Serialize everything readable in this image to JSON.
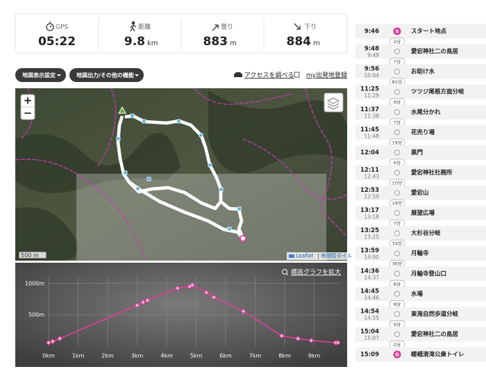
{
  "stats": [
    {
      "label": "GPS",
      "value": "05:22"
    },
    {
      "label": "距離",
      "value": "9.8",
      "unit": "km"
    },
    {
      "label": "登り",
      "value": "883",
      "unit": "m"
    },
    {
      "label": "下り",
      "value": "884",
      "unit": "m"
    }
  ],
  "buttons": [
    "地図表示設定",
    "地図出力/その他の機能"
  ],
  "links": [
    "アクセスを調べる",
    "my出発地登録"
  ],
  "map": {
    "zoom_in": "+",
    "zoom_out": "−",
    "scale": "500 m",
    "attribution": [
      "Leaflet",
      "地理院タイル"
    ]
  },
  "expand_link": "標高グラフを拡大",
  "chart_data": {
    "type": "line",
    "x": [
      0,
      0.14,
      0.38,
      3.0,
      3.2,
      3.35,
      4.37,
      4.78,
      4.87,
      5.35,
      5.6,
      6.6,
      7.9,
      8.45,
      8.9,
      9.72,
      9.8
    ],
    "series": [
      {
        "name": "標高",
        "color": "#e0409a",
        "values": [
          55,
          75,
          120,
          650,
          700,
          730,
          925,
          950,
          975,
          855,
          780,
          555,
          165,
          120,
          90,
          55,
          55
        ]
      }
    ],
    "xlim": [
      0,
      9.9
    ],
    "xticks": [
      {
        "value": 0,
        "label": "0km"
      },
      {
        "value": 1,
        "label": "1km"
      },
      {
        "value": 2,
        "label": "2km"
      },
      {
        "value": 3,
        "label": "3km"
      },
      {
        "value": 4,
        "label": "4km"
      },
      {
        "value": 5,
        "label": "5km"
      },
      {
        "value": 6,
        "label": "6km"
      },
      {
        "value": 7,
        "label": "7km"
      },
      {
        "value": 8,
        "label": "8km"
      },
      {
        "value": 9,
        "label": "9km"
      }
    ],
    "ylim": [
      0,
      1120
    ],
    "yticks": [
      {
        "value": 500,
        "label": "500m"
      },
      {
        "value": 1000,
        "label": "1000m"
      }
    ],
    "grid": true
  },
  "timeline": [
    {
      "arrive": "9:46",
      "badge": "S",
      "name": "スタート地点",
      "duration": "2分"
    },
    {
      "arrive": "9:48",
      "depart": "9:49",
      "name": "愛宕神社二の鳥居",
      "duration": "7分"
    },
    {
      "arrive": "9:56",
      "depart": "10:04",
      "name": "お助け水",
      "duration": "82分"
    },
    {
      "arrive": "11:25",
      "depart": "11:29",
      "name": "ツツジ尾根方面分岐",
      "duration": "9分"
    },
    {
      "arrive": "11:37",
      "depart": "11:38",
      "name": "水尾分かれ",
      "duration": "7分"
    },
    {
      "arrive": "11:45",
      "depart": "11:48",
      "name": "花売り場",
      "duration": "19分"
    },
    {
      "arrive": "12:04",
      "name": "黒門",
      "duration": "6分"
    },
    {
      "arrive": "12:11",
      "depart": "12:43",
      "name": "愛宕神社社務所",
      "duration": "10分"
    },
    {
      "arrive": "12:53",
      "depart": "12:59",
      "name": "愛宕山",
      "duration": "18分"
    },
    {
      "arrive": "13:17",
      "depart": "13:18",
      "name": "展望広場",
      "duration": "7分"
    },
    {
      "arrive": "13:25",
      "depart": "13:25",
      "name": "大杉谷分岐",
      "duration": "34分"
    },
    {
      "arrive": "13:59",
      "depart": "14:00",
      "name": "月輪寺",
      "duration": "36分"
    },
    {
      "arrive": "14:36",
      "depart": "14:37",
      "name": "月輪寺登山口",
      "duration": "8分"
    },
    {
      "arrive": "14:45",
      "depart": "14:46",
      "name": "水場",
      "duration": "8分"
    },
    {
      "arrive": "14:54",
      "depart": "14:55",
      "name": "東海自然歩道分岐",
      "duration": "9分"
    },
    {
      "arrive": "15:04",
      "depart": "15:07",
      "name": "愛宕神社二の鳥居",
      "duration": "2分"
    },
    {
      "arrive": "15:09",
      "badge": "G",
      "name": "嵯峨清滝公衆トイレ"
    }
  ]
}
